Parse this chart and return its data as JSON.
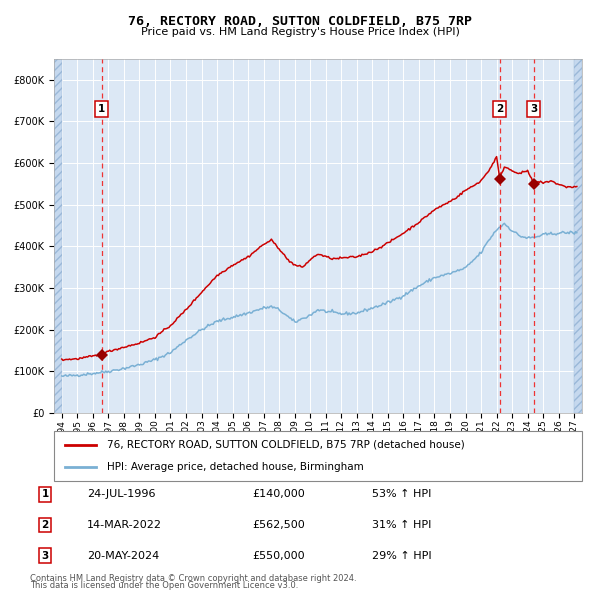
{
  "title1": "76, RECTORY ROAD, SUTTON COLDFIELD, B75 7RP",
  "title2": "Price paid vs. HM Land Registry's House Price Index (HPI)",
  "legend_line1": "76, RECTORY ROAD, SUTTON COLDFIELD, B75 7RP (detached house)",
  "legend_line2": "HPI: Average price, detached house, Birmingham",
  "transactions": [
    {
      "num": 1,
      "date_label": "24-JUL-1996",
      "date_x": 1996.56,
      "price": 140000,
      "pct": "53% ↑ HPI"
    },
    {
      "num": 2,
      "date_label": "14-MAR-2022",
      "date_x": 2022.2,
      "price": 562500,
      "pct": "31% ↑ HPI"
    },
    {
      "num": 3,
      "date_label": "20-MAY-2024",
      "date_x": 2024.38,
      "price": 550000,
      "pct": "29% ↑ HPI"
    }
  ],
  "footer1": "Contains HM Land Registry data © Crown copyright and database right 2024.",
  "footer2": "This data is licensed under the Open Government Licence v3.0.",
  "xlim": [
    1993.5,
    2027.5
  ],
  "ylim": [
    0,
    850000
  ],
  "bg_color": "#dce8f5",
  "red_line_color": "#cc0000",
  "blue_line_color": "#7ab0d4",
  "marker_color": "#990000",
  "grid_color": "#ffffff",
  "dashed_line_color": "#ee3333",
  "hatch_fc": "#c5d8ee",
  "hatch_ec": "#9ab8d8",
  "hatch_data_start": 1994.0,
  "hatch_data_end": 2027.0
}
